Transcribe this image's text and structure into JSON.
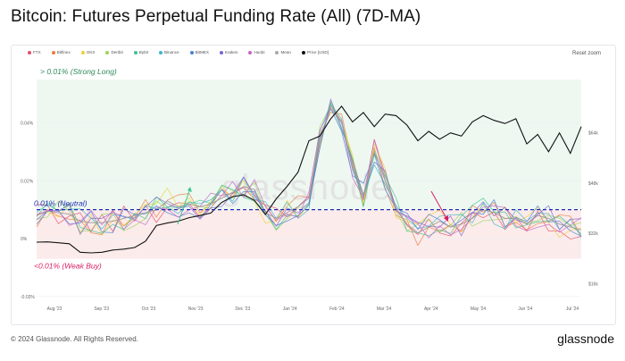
{
  "header": {
    "title": "Bitcoin: Futures Perpetual Funding Rate (All) (7D-MA)"
  },
  "toolbar": {
    "reset_zoom": "Reset zoom"
  },
  "footer": {
    "copyright": "© 2024 Glassnode. All Rights Reserved.",
    "logo": "glassnode"
  },
  "watermark": "glassnode",
  "legend": [
    {
      "name": "FTX",
      "color": "#e84c6b"
    },
    {
      "name": "Bitfinex",
      "color": "#ef7a3d"
    },
    {
      "name": "OKX",
      "color": "#f2cf3a"
    },
    {
      "name": "Deribit",
      "color": "#9dd45a"
    },
    {
      "name": "Bybit",
      "color": "#3cc48f"
    },
    {
      "name": "Binance",
      "color": "#3fb5c9"
    },
    {
      "name": "BitMEX",
      "color": "#4a7fd6"
    },
    {
      "name": "Kraken",
      "color": "#7d63d4"
    },
    {
      "name": "Huobi",
      "color": "#c765cc"
    },
    {
      "name": "Mean",
      "color": "#a9a9a9"
    },
    {
      "name": "Price [USD]",
      "color": "#111111"
    }
  ],
  "annotations": {
    "strong_long": "> 0.01% (Strong Long)",
    "neutral": "0.01% (Neutral)",
    "weak_buy": "<0.01% (Weak Buy)",
    "colors": {
      "strong_long": "#2e8b57",
      "neutral": "#1f2bb5",
      "weak_buy": "#d81b60",
      "green_zone": "#eef8f1",
      "red_zone": "#fbeceb"
    }
  },
  "chart_data": {
    "type": "line",
    "title": "Bitcoin: Futures Perpetual Funding Rate (All) (7D-MA)",
    "x_ticks": [
      "Aug '23",
      "Sep '23",
      "Oct '23",
      "Nov '23",
      "Dec '23",
      "Jan '24",
      "Feb '24",
      "Mar '24",
      "Apr '24",
      "May '24",
      "Jun '24",
      "Jul '24"
    ],
    "y_left": {
      "ticks": [
        "-0.02%",
        "0%",
        "0.02%",
        "0.04%"
      ],
      "range": [
        -0.021,
        0.055
      ]
    },
    "y_right": {
      "ticks": [
        "$16k",
        "$32k",
        "$48k",
        "$64k"
      ],
      "range": [
        11000,
        81000
      ]
    },
    "zones": {
      "neutral_level": 0.01,
      "strong_long_top": 0.055,
      "weak_buy_bottom": -0.007
    },
    "t": [
      0,
      4,
      8,
      12,
      16,
      20,
      24,
      28,
      32,
      36,
      40,
      44,
      48,
      52,
      56,
      60,
      64,
      68,
      72,
      76,
      80,
      84,
      88,
      92,
      96,
      100
    ],
    "series": [
      {
        "name": "Price [USD]",
        "axis": "right",
        "values": [
          29200,
          29300,
          29000,
          28700,
          26000,
          25800,
          26000,
          26700,
          27000,
          27500,
          29500,
          34500,
          35300,
          35900,
          37000,
          37700,
          38500,
          41900,
          43700,
          44300,
          42500,
          38000,
          43000,
          47000,
          51500,
          61500
        ]
      },
      {
        "name": "Mean",
        "axis": "left",
        "values": [
          0.008,
          0.0095,
          0.009,
          0.0085,
          0.006,
          0.0055,
          0.0055,
          0.006,
          0.007,
          0.008,
          0.009,
          0.01,
          0.013,
          0.011,
          0.012,
          0.011,
          0.012,
          0.014,
          0.016,
          0.018,
          0.017,
          0.009,
          0.007,
          0.009,
          0.011,
          0.014
        ]
      }
    ],
    "price_tail": {
      "t": [
        100,
        104,
        108,
        112,
        116,
        120,
        124,
        128,
        132,
        136,
        140,
        144,
        148,
        152,
        156,
        160,
        164,
        168,
        172,
        176,
        180,
        184,
        188,
        192,
        196,
        200
      ],
      "values": [
        61500,
        63000,
        68500,
        72500,
        67500,
        70500,
        66000,
        70000,
        69500,
        66500,
        61500,
        64500,
        62000,
        64000,
        63000,
        67500,
        69500,
        68000,
        67000,
        68500,
        60500,
        63500,
        58000,
        64000,
        57500,
        66000
      ]
    },
    "mean_tail": {
      "t": [
        100,
        104,
        108,
        112,
        116,
        120,
        124,
        128,
        132,
        136,
        140,
        144,
        148,
        152,
        156,
        160,
        164,
        168,
        172,
        176,
        180,
        184,
        188,
        192,
        196,
        200
      ],
      "values": [
        0.014,
        0.035,
        0.045,
        0.04,
        0.025,
        0.015,
        0.03,
        0.02,
        0.01,
        0.005,
        0.002,
        0.004,
        0.006,
        0.004,
        0.005,
        0.007,
        0.01,
        0.009,
        0.007,
        0.007,
        0.005,
        0.008,
        0.007,
        0.005,
        0.004,
        0.003
      ]
    }
  }
}
